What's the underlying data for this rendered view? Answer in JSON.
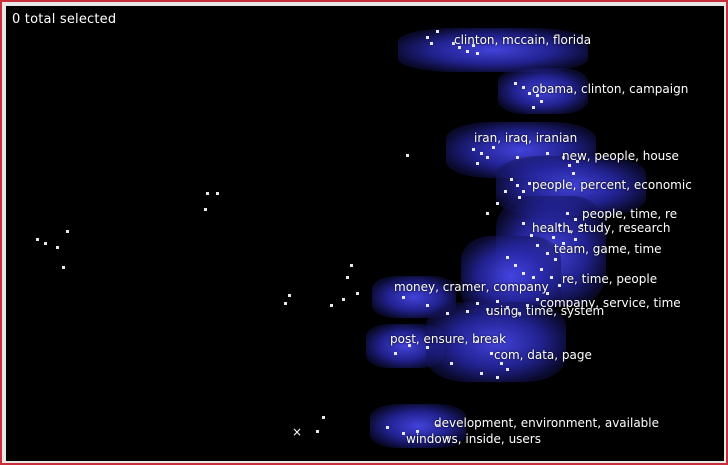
{
  "status": {
    "text": "0 total selected"
  },
  "topics": [
    {
      "id": "t1",
      "label": "clinton, mccain, florida"
    },
    {
      "id": "t2",
      "label": "obama, clinton, campaign"
    },
    {
      "id": "t3",
      "label": "iran, iraq, iranian"
    },
    {
      "id": "t4",
      "label": "new, people, house"
    },
    {
      "id": "t5",
      "label": "people, percent, economic"
    },
    {
      "id": "t6",
      "label": "people, time, re"
    },
    {
      "id": "t7",
      "label": "health, study, research"
    },
    {
      "id": "t8",
      "label": "team, game, time"
    },
    {
      "id": "t9",
      "label": "re, time, people"
    },
    {
      "id": "t10",
      "label": "money, cramer, company"
    },
    {
      "id": "t11",
      "label": "company, service, time"
    },
    {
      "id": "t12",
      "label": "using, time, system"
    },
    {
      "id": "t13",
      "label": "post, ensure, break"
    },
    {
      "id": "t14",
      "label": "com, data, page"
    },
    {
      "id": "t15",
      "label": "development, environment, available"
    },
    {
      "id": "t16",
      "label": "windows, inside, users"
    }
  ],
  "cursor": {
    "symbol": "×"
  },
  "colors": {
    "frame_border": "#c82f3a",
    "background": "#000000",
    "glow": "#3c3cd2",
    "dots": "#e8e8e8"
  }
}
